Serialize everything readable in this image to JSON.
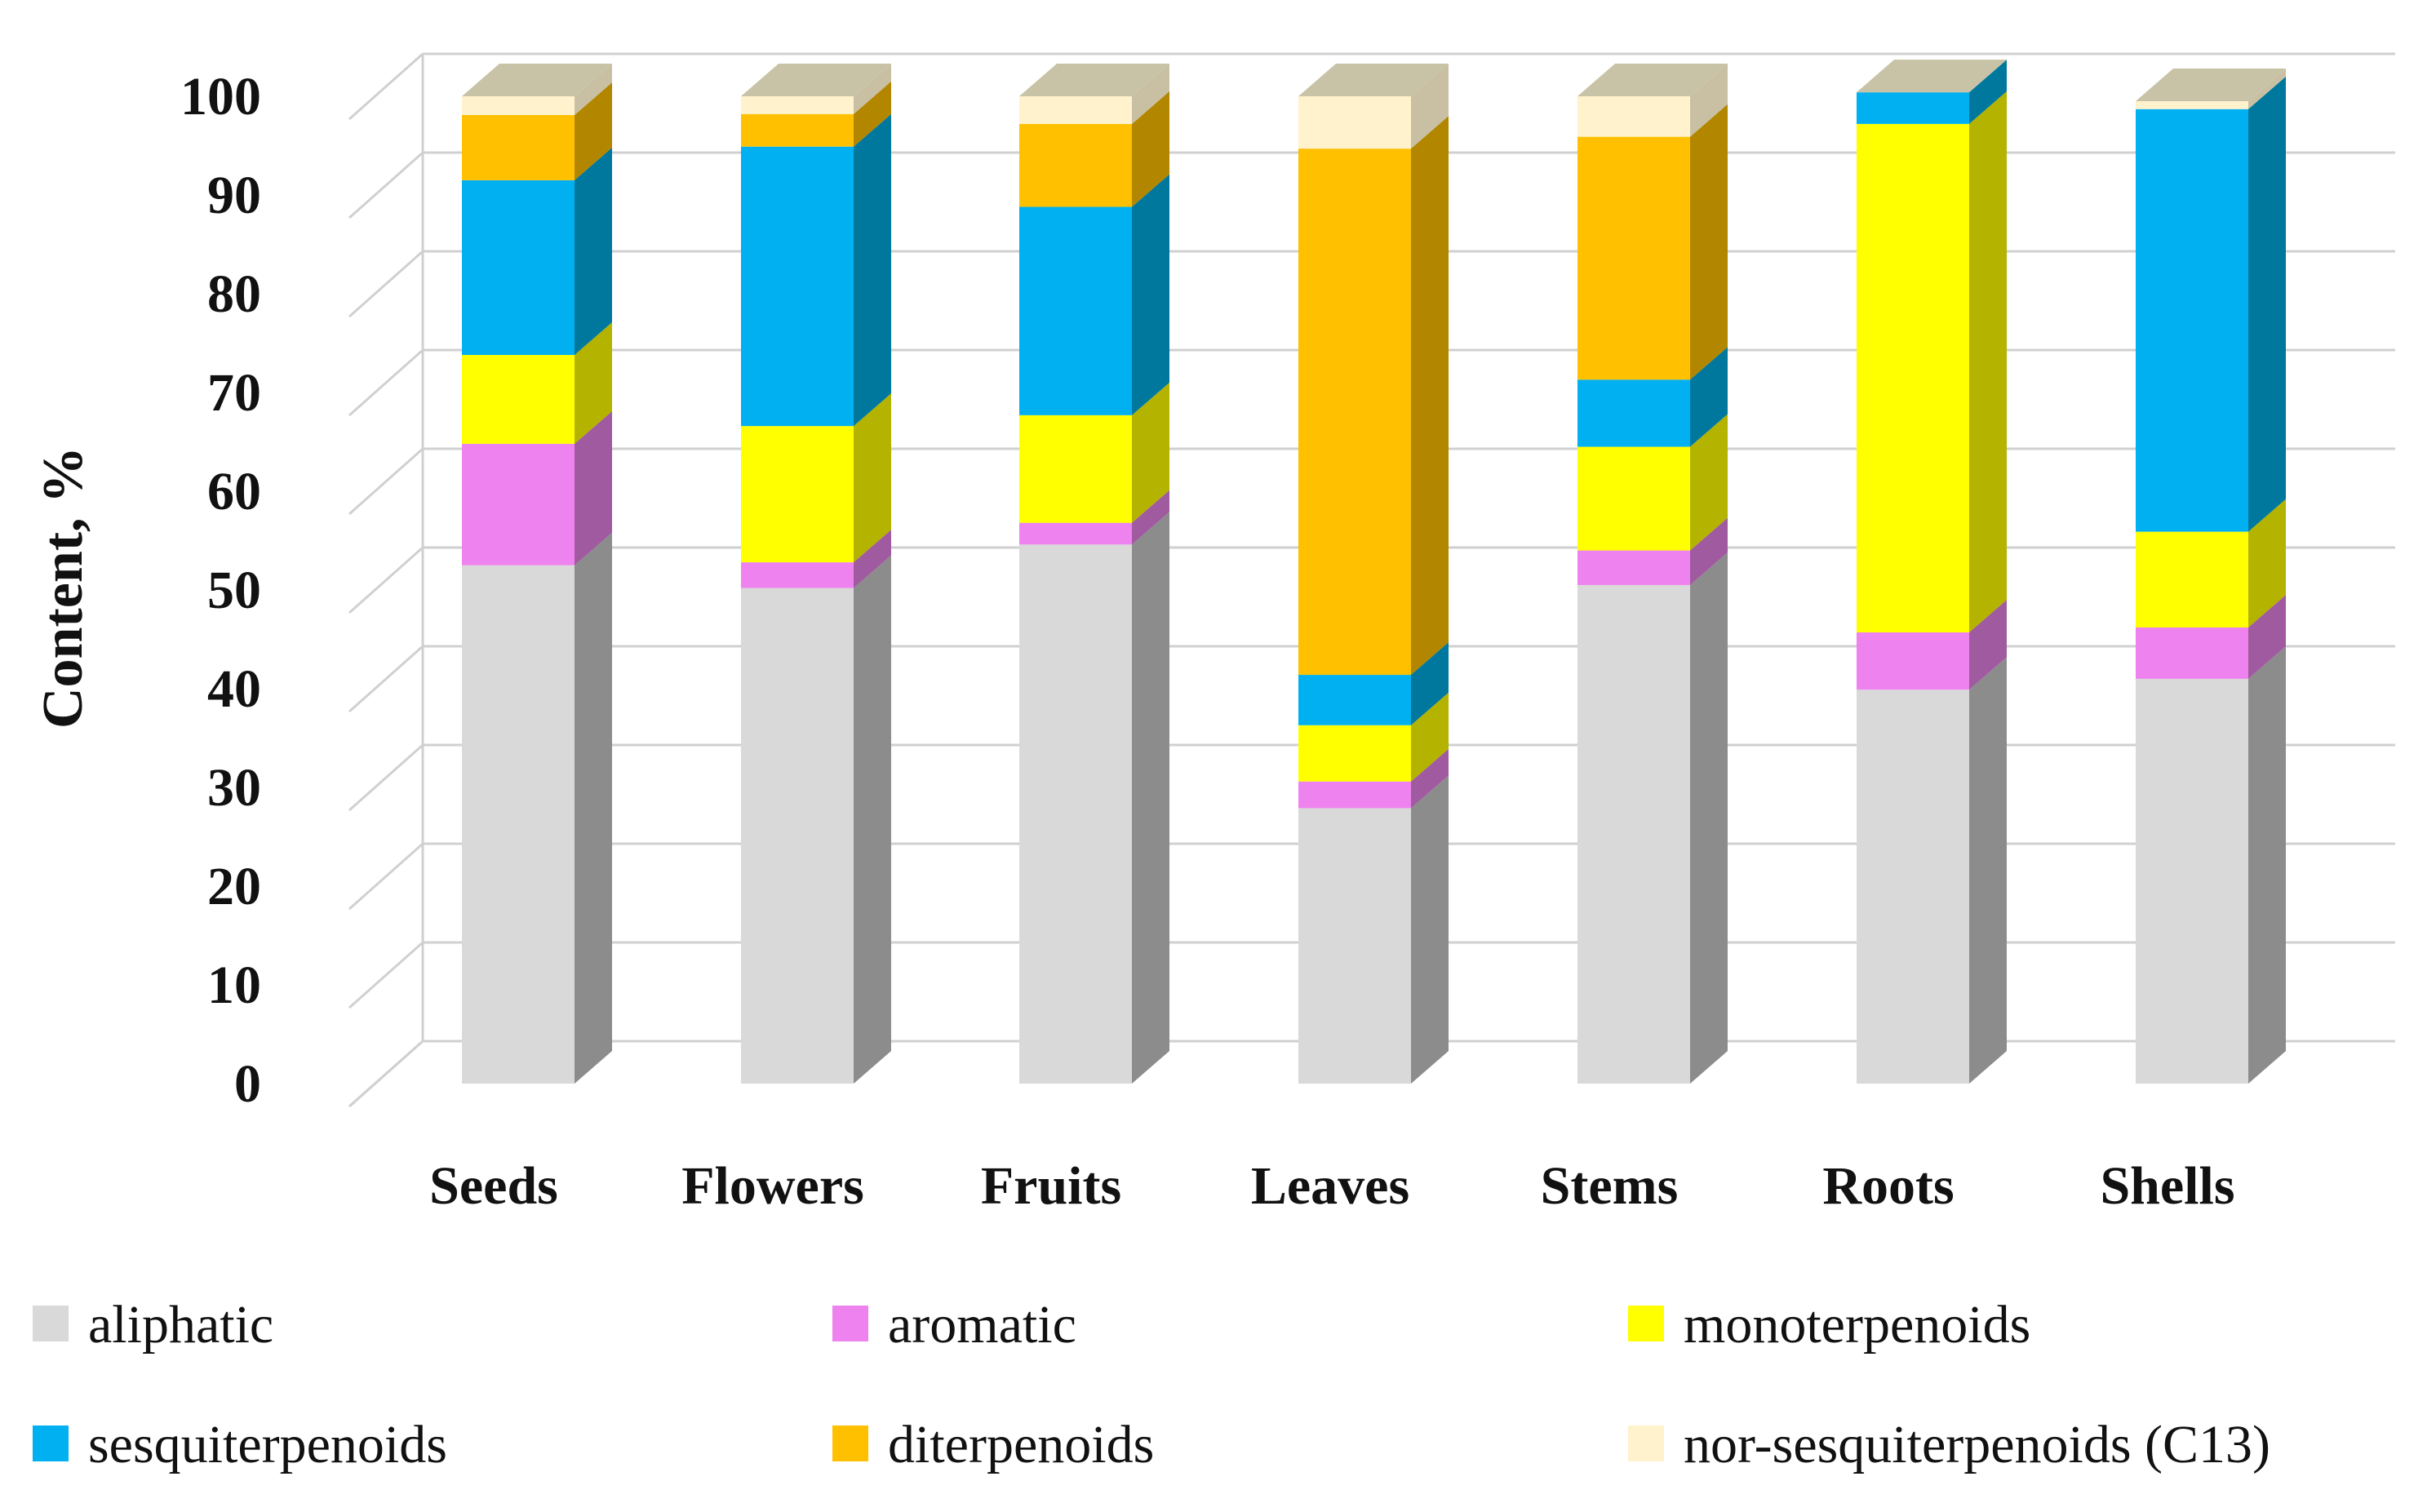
{
  "chart_data": {
    "type": "bar",
    "stacked": true,
    "three_d": true,
    "categories": [
      "Seeds",
      "Flowers",
      "Fruits",
      "Leaves",
      "Stems",
      "Roots",
      "Shells"
    ],
    "ylabel": "Content, %",
    "xlabel": "",
    "ylim": [
      0,
      100
    ],
    "yticks": [
      0,
      10,
      20,
      30,
      40,
      50,
      60,
      70,
      80,
      90,
      100
    ],
    "grid": true,
    "legend_position": "bottom",
    "series": [
      {
        "name": "aliphatic",
        "color": "#d9d9d9",
        "side_color": "#8c8c8c",
        "values": [
          52.5,
          50.2,
          54.6,
          27.9,
          50.5,
          39.9,
          41.0
        ]
      },
      {
        "name": "aromatic",
        "color": "#ee82ee",
        "side_color": "#a05aa0",
        "values": [
          12.3,
          2.6,
          2.2,
          2.7,
          3.5,
          5.8,
          5.2
        ]
      },
      {
        "name": "monoterpenoids",
        "color": "#ffff00",
        "side_color": "#b3b300",
        "values": [
          9.0,
          13.8,
          10.9,
          5.7,
          10.5,
          51.5,
          9.7
        ]
      },
      {
        "name": "sesquiterpenoids",
        "color": "#00b0f0",
        "side_color": "#00789e",
        "values": [
          17.7,
          28.3,
          21.1,
          5.1,
          6.8,
          3.2,
          42.8
        ]
      },
      {
        "name": "diterpenoids",
        "color": "#ffc000",
        "side_color": "#b38600",
        "values": [
          6.6,
          3.3,
          8.4,
          53.3,
          24.6,
          0,
          0
        ]
      },
      {
        "name": "nor-sesquiterpenoids (C13)",
        "color": "#fff2cc",
        "side_color": "#c9c0a4",
        "values": [
          1.9,
          1.8,
          2.8,
          5.3,
          4.1,
          0,
          0.8
        ]
      }
    ]
  }
}
